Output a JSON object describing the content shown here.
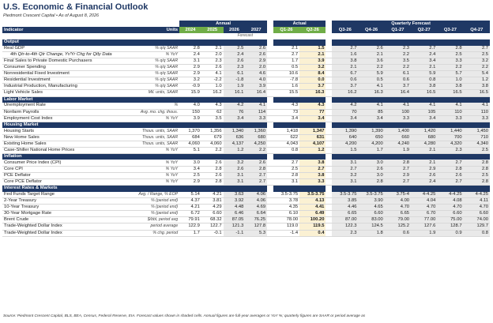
{
  "title": "U.S. Economic & Financial Outlook",
  "subtitle": "Piedmont Crescent Capital  •  As of August 8, 2026",
  "groups": {
    "annual": "Annual",
    "actual": "Actual",
    "quarterly": "Quarterly Forecast"
  },
  "header": {
    "indicator": "Indicator",
    "units": "Units",
    "annual_years": [
      "2024",
      "2025",
      "2026",
      "2027"
    ],
    "actual_q": [
      "Q1-26",
      "Q2-26"
    ],
    "forecast_q": [
      "Q3-26",
      "Q4-26",
      "Q1-27",
      "Q2-27",
      "Q3-27",
      "Q4-27"
    ]
  },
  "forecast_note": "Forecast",
  "sections": [
    {
      "name": "Output",
      "rows": [
        {
          "label": "Real GDP",
          "unit": "% q/q SAAR",
          "annual": [
            "2.8",
            "2.1",
            "2.5",
            "2.6"
          ],
          "actual": [
            "2.1",
            "1.5"
          ],
          "quarterly": [
            "2.7",
            "2.6",
            "2.3",
            "2.7",
            "2.8",
            "2.7"
          ]
        },
        {
          "label": "4th Qtr-to-4th Qtr Change, Yr/Yr Chg for Qtly Data",
          "unit": "% YoY",
          "sub": true,
          "annual": [
            "2.4",
            "2.0",
            "2.4",
            "2.6"
          ],
          "actual": [
            "2.7",
            "2.1"
          ],
          "quarterly": [
            "1.6",
            "2.1",
            "2.2",
            "2.4",
            "2.5",
            "2.5"
          ]
        },
        {
          "label": "Final Sales to Private Domestic Purchasers",
          "unit": "% q/q SAAR",
          "annual": [
            "3.1",
            "2.3",
            "2.6",
            "2.9"
          ],
          "actual": [
            "1.7",
            "3.9"
          ],
          "quarterly": [
            "3.8",
            "3.6",
            "3.5",
            "3.4",
            "3.3",
            "3.2"
          ]
        },
        {
          "label": "Consumer Spending",
          "unit": "% q/q SAAR",
          "annual": [
            "2.9",
            "2.6",
            "2.3",
            "2.0"
          ],
          "actual": [
            "0.5",
            "3.2"
          ],
          "quarterly": [
            "2.1",
            "2.2",
            "2.2",
            "2.1",
            "2.2",
            "2.2"
          ]
        },
        {
          "label": "Nonresidential Fixed Investment",
          "unit": "% q/q SAAR",
          "annual": [
            "2.9",
            "4.1",
            "6.1",
            "4.6"
          ],
          "actual": [
            "10.6",
            "8.4"
          ],
          "quarterly": [
            "6.7",
            "5.9",
            "6.1",
            "5.9",
            "5.7",
            "5.4"
          ]
        },
        {
          "label": "Residential Investment",
          "unit": "% q/q SAAR",
          "annual": [
            "3.2",
            "-2.2",
            "-1.8",
            "4.0"
          ],
          "actual": [
            "-7.8",
            "0.0"
          ],
          "quarterly": [
            "0.6",
            "0.5",
            "0.6",
            "0.8",
            "1.0",
            "1.2"
          ]
        },
        {
          "label": "Industrial Production, Manufacturing",
          "unit": "% q/q SAAR",
          "annual": [
            "-0.9",
            "1.0",
            "1.9",
            "3.9"
          ],
          "actual": [
            "1.6",
            "3.7"
          ],
          "quarterly": [
            "3.7",
            "4.1",
            "3.7",
            "3.8",
            "3.8",
            "3.8"
          ]
        },
        {
          "label": "Light Vehicle Sales",
          "unit": "Mil. units, SAAR",
          "annual": [
            "15.9",
            "16.2",
            "16.1",
            "16.4"
          ],
          "actual": [
            "15.5",
            "16.3"
          ],
          "quarterly": [
            "16.2",
            "16.3",
            "16.4",
            "16.5",
            "16.5",
            "16.5"
          ]
        }
      ]
    },
    {
      "name": "Labor Market",
      "rows": [
        {
          "label": "Unemployment Rate",
          "unit": "%",
          "annual": [
            "4.0",
            "4.3",
            "4.2",
            "4.1"
          ],
          "actual": [
            "4.3",
            "4.3"
          ],
          "quarterly": [
            "4.2",
            "4.1",
            "4.1",
            "4.1",
            "4.1",
            "4.1"
          ]
        },
        {
          "label": "Nonfarm Payrolls",
          "unit": "Avg. mo. chg. thous.",
          "annual": [
            "150",
            "62",
            "76",
            "114"
          ],
          "actual": [
            "73",
            "77"
          ],
          "quarterly": [
            "70",
            "85",
            "100",
            "105",
            "110",
            "110"
          ]
        },
        {
          "label": "Employment Cost Index",
          "unit": "% YoY",
          "annual": [
            "3.9",
            "3.5",
            "3.4",
            "3.3"
          ],
          "actual": [
            "3.4",
            "3.4"
          ],
          "quarterly": [
            "3.4",
            "3.4",
            "3.3",
            "3.4",
            "3.3",
            "3.3"
          ]
        }
      ]
    },
    {
      "name": "Housing Market",
      "rows": [
        {
          "label": "Housing Starts",
          "unit": "Thous. units, SAAR",
          "annual": [
            "1,370",
            "1,356",
            "1,340",
            "1,360"
          ],
          "actual": [
            "1,418",
            "1,347"
          ],
          "quarterly": [
            "1,390",
            "1,390",
            "1,400",
            "1,420",
            "1,440",
            "1,450"
          ]
        },
        {
          "label": "New Home Sales",
          "unit": "Thous. units, SAAR",
          "annual": [
            "684",
            "679",
            "636",
            "680"
          ],
          "actual": [
            "622",
            "631"
          ],
          "quarterly": [
            "640",
            "650",
            "660",
            "680",
            "700",
            "710"
          ]
        },
        {
          "label": "Existing Home Sales",
          "unit": "Thous. units, SAAR",
          "annual": [
            "4,060",
            "4,060",
            "4,137",
            "4,250"
          ],
          "actual": [
            "4,043",
            "4,107"
          ],
          "quarterly": [
            "4,200",
            "4,200",
            "4,240",
            "4,280",
            "4,320",
            "4,340"
          ]
        },
        {
          "label": "Case-Shiller National Home Prices",
          "unit": "% YoY",
          "annual": [
            "5.1",
            "2.2",
            "1.2",
            "2.2"
          ],
          "actual": [
            "0.8",
            "1.2"
          ],
          "quarterly": [
            "1.5",
            "1.7",
            "1.9",
            "2.1",
            "2.3",
            "2.5"
          ]
        }
      ]
    },
    {
      "name": "Inflation",
      "rows": [
        {
          "label": "Consumer Price Index (CPI)",
          "unit": "% YoY",
          "annual": [
            "3.0",
            "2.6",
            "3.2",
            "2.6"
          ],
          "actual": [
            "2.7",
            "3.8"
          ],
          "quarterly": [
            "3.1",
            "3.0",
            "2.8",
            "2.1",
            "2.7",
            "2.8"
          ]
        },
        {
          "label": "Core CPI",
          "unit": "% YoY",
          "annual": [
            "3.4",
            "2.8",
            "2.6",
            "2.8"
          ],
          "actual": [
            "2.5",
            "2.7"
          ],
          "quarterly": [
            "2.7",
            "2.6",
            "2.7",
            "2.9",
            "2.8",
            "2.8"
          ]
        },
        {
          "label": "PCE Deflator",
          "unit": "% YoY",
          "annual": [
            "2.5",
            "2.6",
            "3.1",
            "2.7"
          ],
          "actual": [
            "2.8",
            "3.8"
          ],
          "quarterly": [
            "3.2",
            "3.0",
            "2.9",
            "2.6",
            "2.6",
            "2.5"
          ]
        },
        {
          "label": "Core PCE Deflator",
          "unit": "% YoY",
          "annual": [
            "2.9",
            "2.8",
            "3.1",
            "2.7"
          ],
          "actual": [
            "3.1",
            "3.3"
          ],
          "quarterly": [
            "3.1",
            "2.8",
            "2.7",
            "2.4",
            "2.7",
            "2.8"
          ]
        }
      ]
    },
    {
      "name": "Interest Rates & Markets",
      "rows": [
        {
          "label": "Fed Funds Target Range",
          "unit": "Avg. / Range, % EOP",
          "annual": [
            "5.14",
            "4.21",
            "3.63",
            "4.06"
          ],
          "actual": [
            "3.5-3.75",
            "3.5-3.75"
          ],
          "quarterly": [
            "3.5-3.75",
            "3.5-3.75",
            "3.75-4",
            "4-4.25",
            "4-4.25",
            "4-4.25"
          ]
        },
        {
          "label": "2-Year Treasury",
          "unit": "% (period end)",
          "annual": [
            "4.37",
            "3.81",
            "3.92",
            "4.06"
          ],
          "actual": [
            "3.78",
            "4.13"
          ],
          "quarterly": [
            "3.85",
            "3.90",
            "4.00",
            "4.04",
            "4.08",
            "4.11"
          ]
        },
        {
          "label": "10-Year Treasury",
          "unit": "% (period end)",
          "annual": [
            "4.21",
            "4.29",
            "4.48",
            "4.69"
          ],
          "actual": [
            "4.35",
            "4.41"
          ],
          "quarterly": [
            "4.46",
            "4.65",
            "4.70",
            "4.70",
            "4.70",
            "4.70"
          ]
        },
        {
          "label": "30-Year Mortgage Rate",
          "unit": "% (period end)",
          "annual": [
            "6.72",
            "6.60",
            "6.46",
            "6.64"
          ],
          "actual": [
            "6.10",
            "6.49"
          ],
          "quarterly": [
            "6.65",
            "6.60",
            "6.65",
            "6.70",
            "6.60",
            "6.60"
          ]
        },
        {
          "label": "Brent Crude",
          "unit": "$/bbl, period avg",
          "annual": [
            "79.91",
            "68.32",
            "87.05",
            "76.25"
          ],
          "actual": [
            "78.00",
            "100.20"
          ],
          "quarterly": [
            "87.00",
            "83.00",
            "79.00",
            "77.00",
            "75.00",
            "74.00"
          ]
        },
        {
          "label": "Trade-Weighted Dollar Index",
          "unit": "period average",
          "annual": [
            "122.9",
            "122.7",
            "121.3",
            "127.8"
          ],
          "actual": [
            "119.0",
            "119.5"
          ],
          "quarterly": [
            "122.3",
            "124.5",
            "125.2",
            "127.6",
            "128.7",
            "129.7"
          ]
        },
        {
          "label": "Trade-Weighted Dollar Index",
          "unit": "% chg. period",
          "annual": [
            "1.7",
            "-0.1",
            "-1.1",
            "5.3"
          ],
          "actual": [
            "-1.4",
            "0.4"
          ],
          "quarterly": [
            "2.3",
            "1.8",
            "0.6",
            "1.9",
            "0.9",
            "0.8"
          ]
        }
      ]
    }
  ],
  "footer": "Source: Piedmont Crescent Capital, BLS, BEA, Census, Federal Reserve, EIA. Forecast values shown in shaded cells. Annual figures are full-year averages or YoY %; quarterly figures are SAAR or period average as"
}
